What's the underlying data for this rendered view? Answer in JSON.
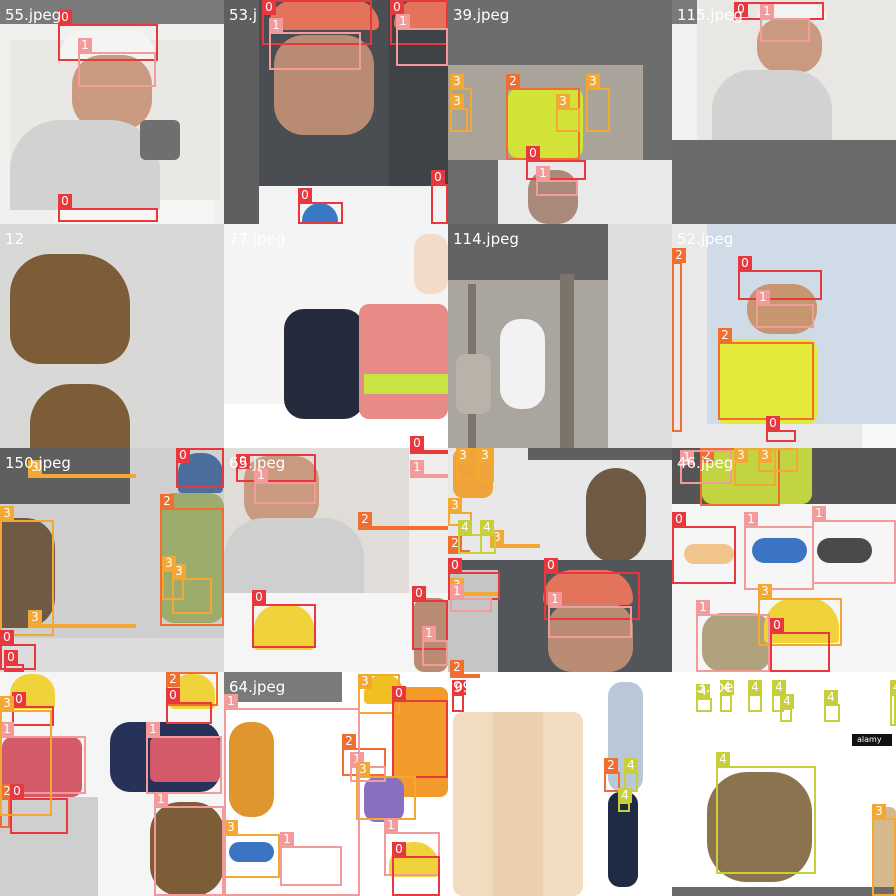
{
  "tiles": [
    {
      "label": "55.jpeg"
    },
    {
      "label": "53.j"
    },
    {
      "label": "39.jpeg"
    },
    {
      "label": "115.jpeg"
    },
    {
      "label": "12"
    },
    {
      "label": "77.jpeg"
    },
    {
      "label": "114.jpeg"
    },
    {
      "label": "52.jpeg"
    },
    {
      "label": "150.jpeg"
    },
    {
      "label": "65.jpeg"
    },
    {
      "label": ""
    },
    {
      "label": "46.jpeg"
    },
    {
      "label": ""
    },
    {
      "label": "64.jpeg"
    },
    {
      "label": "99.jpeg"
    },
    {
      "label": "133.jpeg"
    }
  ],
  "class_colors": {
    "0": "#e8383d",
    "1": "#f39b9b",
    "2": "#ef6e30",
    "3": "#f2a833",
    "4": "#c8cf3a"
  },
  "boxes": [
    {
      "tile": 0,
      "cls": "0"
    },
    {
      "tile": 0,
      "cls": "1"
    },
    {
      "tile": 0,
      "cls": "0"
    },
    {
      "tile": 1,
      "cls": "0"
    },
    {
      "tile": 1,
      "cls": "1"
    },
    {
      "tile": 1,
      "cls": "0"
    },
    {
      "tile": 1,
      "cls": "1"
    },
    {
      "tile": 1,
      "cls": "0"
    },
    {
      "tile": 1,
      "cls": "0"
    },
    {
      "tile": 2,
      "cls": "2"
    },
    {
      "tile": 2,
      "cls": "3"
    },
    {
      "tile": 2,
      "cls": "3"
    },
    {
      "tile": 2,
      "cls": "3"
    },
    {
      "tile": 2,
      "cls": "3"
    },
    {
      "tile": 2,
      "cls": "0"
    },
    {
      "tile": 2,
      "cls": "1"
    },
    {
      "tile": 3,
      "cls": "0"
    },
    {
      "tile": 3,
      "cls": "1"
    },
    {
      "tile": 4,
      "cls": "3"
    },
    {
      "tile": 4,
      "cls": "3"
    },
    {
      "tile": 5,
      "cls": "2"
    },
    {
      "tile": 5,
      "cls": "0"
    },
    {
      "tile": 5,
      "cls": "1"
    },
    {
      "tile": 6,
      "cls": "2"
    },
    {
      "tile": 6,
      "cls": "3"
    },
    {
      "tile": 6,
      "cls": "3"
    },
    {
      "tile": 6,
      "cls": "2"
    },
    {
      "tile": 7,
      "cls": "0"
    },
    {
      "tile": 7,
      "cls": "1"
    },
    {
      "tile": 7,
      "cls": "2"
    },
    {
      "tile": 7,
      "cls": "2"
    },
    {
      "tile": 7,
      "cls": "0"
    },
    {
      "tile": 8,
      "cls": "0"
    },
    {
      "tile": 8,
      "cls": "2"
    },
    {
      "tile": 8,
      "cls": "3"
    },
    {
      "tile": 8,
      "cls": "3"
    },
    {
      "tile": 8,
      "cls": "3"
    },
    {
      "tile": 8,
      "cls": "0"
    },
    {
      "tile": 8,
      "cls": "0"
    },
    {
      "tile": 9,
      "cls": "0"
    },
    {
      "tile": 9,
      "cls": "1"
    },
    {
      "tile": 9,
      "cls": "0"
    },
    {
      "tile": 9,
      "cls": "0"
    },
    {
      "tile": 9,
      "cls": "1"
    },
    {
      "tile": 10,
      "cls": "3"
    },
    {
      "tile": 10,
      "cls": "3"
    },
    {
      "tile": 10,
      "cls": "3"
    },
    {
      "tile": 10,
      "cls": "4"
    },
    {
      "tile": 10,
      "cls": "4"
    },
    {
      "tile": 10,
      "cls": "0"
    },
    {
      "tile": 10,
      "cls": "1"
    },
    {
      "tile": 10,
      "cls": "0"
    },
    {
      "tile": 10,
      "cls": "1"
    },
    {
      "tile": 11,
      "cls": "2"
    },
    {
      "tile": 11,
      "cls": "3"
    },
    {
      "tile": 11,
      "cls": "3"
    },
    {
      "tile": 11,
      "cls": "0"
    },
    {
      "tile": 11,
      "cls": "1"
    },
    {
      "tile": 11,
      "cls": "1"
    },
    {
      "tile": 11,
      "cls": "1"
    },
    {
      "tile": 11,
      "cls": "3"
    },
    {
      "tile": 11,
      "cls": "0"
    },
    {
      "tile": 11,
      "cls": "1"
    },
    {
      "tile": 12,
      "cls": "0"
    },
    {
      "tile": 12,
      "cls": "1"
    },
    {
      "tile": 12,
      "cls": "2"
    },
    {
      "tile": 12,
      "cls": "0"
    },
    {
      "tile": 12,
      "cls": "1"
    },
    {
      "tile": 12,
      "cls": "2"
    },
    {
      "tile": 12,
      "cls": "0"
    },
    {
      "tile": 12,
      "cls": "1"
    },
    {
      "tile": 12,
      "cls": "3"
    },
    {
      "tile": 13,
      "cls": "3"
    },
    {
      "tile": 13,
      "cls": "0"
    },
    {
      "tile": 13,
      "cls": "2"
    },
    {
      "tile": 13,
      "cls": "1"
    },
    {
      "tile": 13,
      "cls": "3"
    },
    {
      "tile": 13,
      "cls": "3"
    },
    {
      "tile": 13,
      "cls": "1"
    },
    {
      "tile": 13,
      "cls": "1"
    },
    {
      "tile": 13,
      "cls": "0"
    },
    {
      "tile": 13,
      "cls": "1"
    },
    {
      "tile": 14,
      "cls": "2"
    },
    {
      "tile": 14,
      "cls": "4"
    },
    {
      "tile": 14,
      "cls": "4"
    },
    {
      "tile": 14,
      "cls": "0"
    },
    {
      "tile": 15,
      "cls": "4"
    },
    {
      "tile": 15,
      "cls": "4"
    },
    {
      "tile": 15,
      "cls": "4"
    },
    {
      "tile": 15,
      "cls": "4"
    },
    {
      "tile": 15,
      "cls": "4"
    },
    {
      "tile": 15,
      "cls": "4"
    },
    {
      "tile": 15,
      "cls": "4"
    },
    {
      "tile": 15,
      "cls": "4"
    },
    {
      "tile": 15,
      "cls": "3"
    },
    {
      "tile": 15,
      "cls": "2"
    }
  ],
  "watermarks": {
    "tile15_corner": "alamy"
  }
}
